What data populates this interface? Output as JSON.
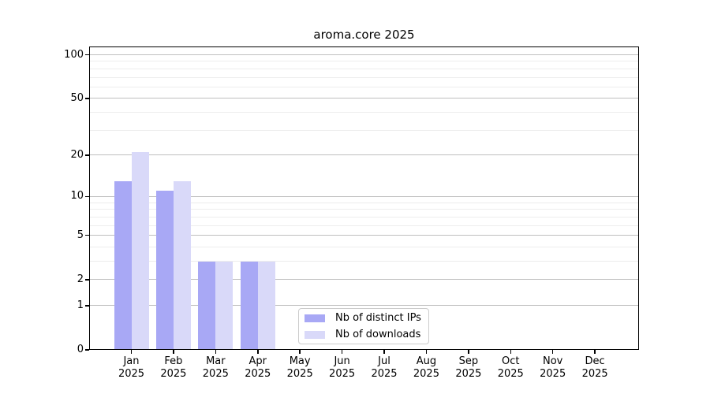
{
  "chart_data": {
    "type": "bar",
    "title": "aroma.core 2025",
    "categories": [
      "Jan 2025",
      "Feb 2025",
      "Mar 2025",
      "Apr 2025",
      "May 2025",
      "Jun 2025",
      "Jul 2025",
      "Aug 2025",
      "Sep 2025",
      "Oct 2025",
      "Nov 2025",
      "Dec 2025"
    ],
    "series": [
      {
        "name": "Nb of distinct IPs",
        "color": "#a8a8f5",
        "values": [
          13,
          11,
          3,
          3,
          0,
          0,
          0,
          0,
          0,
          0,
          0,
          0
        ]
      },
      {
        "name": "Nb of downloads",
        "color": "#d9d9f9",
        "values": [
          21,
          13,
          3,
          3,
          0,
          0,
          0,
          0,
          0,
          0,
          0,
          0
        ]
      }
    ],
    "xlabel": "",
    "ylabel": "",
    "yscale": "log1p",
    "ylim": [
      0,
      114
    ],
    "yticks_major": [
      0,
      1,
      2,
      5,
      10,
      20,
      50,
      100
    ],
    "yticks_minor": [
      3,
      4,
      6,
      7,
      8,
      9,
      30,
      40,
      60,
      70,
      80,
      90
    ],
    "grid": true,
    "legend_position": "inside-bottom-center",
    "colors": {
      "background": "#ffffff",
      "grid_major": "#bfbfbf",
      "grid_minor": "#ededed",
      "spine": "#000000",
      "text": "#000000"
    }
  }
}
